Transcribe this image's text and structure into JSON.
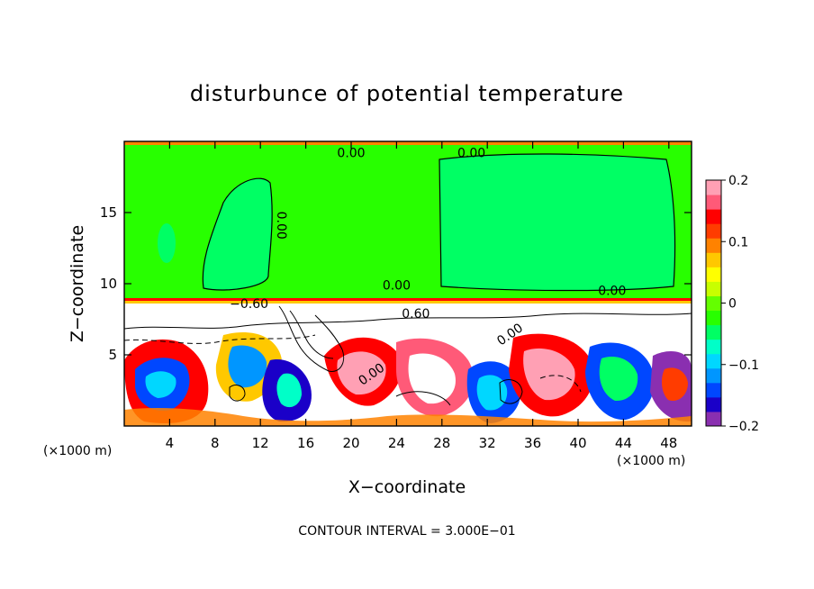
{
  "chart_data": {
    "type": "heatmap",
    "title": "disturbunce of potential temperature",
    "xlabel": "X−coordinate",
    "ylabel": "Z−coordinate",
    "x_unit_label": "(×1000 m)",
    "z_unit_label": "(×1000 m)",
    "xlim": [
      0,
      50
    ],
    "ylim": [
      0,
      20
    ],
    "x_ticks": [
      4,
      8,
      12,
      16,
      20,
      24,
      28,
      32,
      36,
      40,
      44,
      48
    ],
    "y_ticks": [
      5,
      10,
      15
    ],
    "contour_interval_text": "CONTOUR INTERVAL = 3.000E−01",
    "contour_labels": [
      {
        "text": "0.00",
        "x": 20,
        "y": 18.9
      },
      {
        "text": "0.00",
        "x": 30.6,
        "y": 18.9
      },
      {
        "text": "0.00",
        "x": 13.5,
        "y": 14.1,
        "rotate": 90
      },
      {
        "text": "0.00",
        "x": 24,
        "y": 9.6
      },
      {
        "text": "0.00",
        "x": 43,
        "y": 9.2
      },
      {
        "text": "−0.60",
        "x": 11,
        "y": 8.3
      },
      {
        "text": "0.60",
        "x": 25.7,
        "y": 7.6
      },
      {
        "text": "0.00",
        "x": 34.2,
        "y": 6.2,
        "rotate": -35
      },
      {
        "text": "0.00",
        "x": 22,
        "y": 3.4,
        "rotate": -35
      }
    ],
    "colorbar": {
      "min": -0.2,
      "max": 0.2,
      "tick_values": [
        0.2,
        0.1,
        0,
        -0.1,
        -0.2
      ],
      "tick_labels": [
        "0.2",
        "0.1",
        "0",
        "−0.1",
        "−0.2"
      ],
      "colors": [
        "#8a2fb0",
        "#1a00c8",
        "#0047ff",
        "#0096ff",
        "#00d7ff",
        "#00ffc8",
        "#00ff64",
        "#28ff00",
        "#64ff00",
        "#c8ff00",
        "#ffff00",
        "#ffc800",
        "#ff8200",
        "#ff3c00",
        "#ff0000",
        "#ff5a78",
        "#ffa0b4"
      ]
    }
  }
}
